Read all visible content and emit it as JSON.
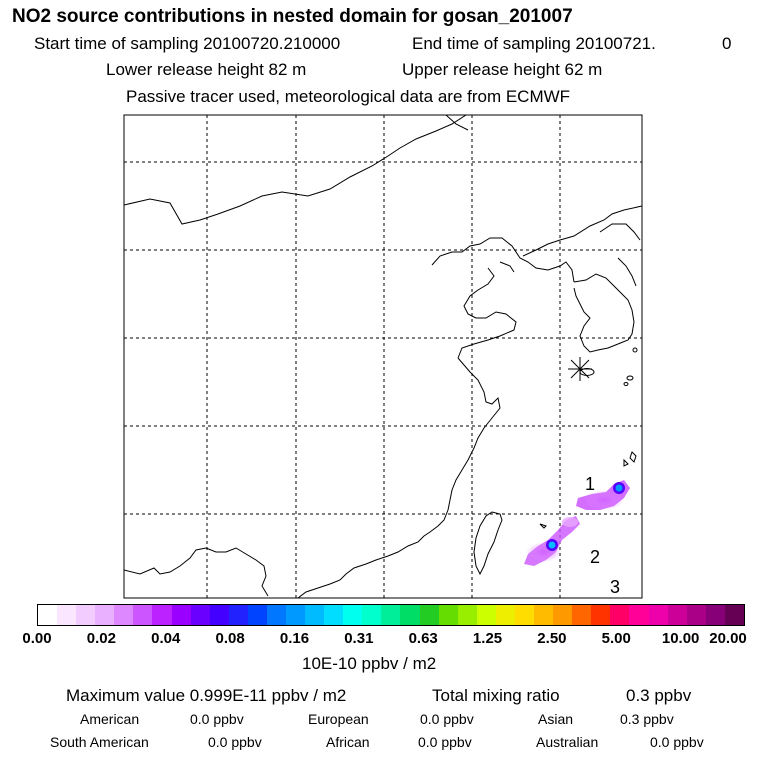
{
  "title": "NO2 source contributions in nested domain for gosan_201007",
  "sampling": {
    "start": "Start time of sampling 20100720.210000",
    "end": "End time of sampling 20100721.",
    "end_suffix": "0"
  },
  "release": {
    "lower": "Lower release height   82 m",
    "upper": "Upper release height   62 m"
  },
  "note": "Passive tracer used, meteorological data are from ECMWF",
  "map": {
    "labels": [
      "1",
      "2",
      "3"
    ],
    "colors": {
      "coast": "#000000",
      "grid": "#000000",
      "plume": "#cc33ff",
      "hotspot": "#2277ff"
    }
  },
  "colorbar": {
    "ticks": [
      "0.00",
      "0.02",
      "0.04",
      "0.08",
      "0.16",
      "0.31",
      "0.63",
      "1.25",
      "2.50",
      "5.00",
      "10.00",
      "20.00"
    ],
    "colors": [
      "#ffffff",
      "#fbe6ff",
      "#f3ccff",
      "#e8b0ff",
      "#dd88ff",
      "#cc55ff",
      "#bb22ff",
      "#9900ff",
      "#6a00ff",
      "#4400ff",
      "#2222ff",
      "#0044ff",
      "#0077ff",
      "#0099ff",
      "#00bbff",
      "#00ddff",
      "#00ffee",
      "#00ffcc",
      "#00ee99",
      "#00dd66",
      "#22cc22",
      "#66dd00",
      "#99ee00",
      "#ccff00",
      "#eeee00",
      "#ffdd00",
      "#ffbb00",
      "#ff9900",
      "#ff6600",
      "#ff3300",
      "#ff0066",
      "#ff0099",
      "#ee00aa",
      "#cc0099",
      "#aa0088",
      "#880077",
      "#660055"
    ],
    "unit": "10E-10 ppbv / m2"
  },
  "summary": {
    "max_value": "Maximum value  0.999E-11 ppbv / m2",
    "total": "Total mixing ratio",
    "total_value": "0.3 ppbv"
  },
  "regions": [
    {
      "name": "American",
      "value": "0.0 ppbv"
    },
    {
      "name": "European",
      "value": "0.0 ppbv"
    },
    {
      "name": "Asian",
      "value": "0.3 ppbv"
    },
    {
      "name": "South American",
      "value": "0.0 ppbv"
    },
    {
      "name": "African",
      "value": "0.0 ppbv"
    },
    {
      "name": "Australian",
      "value": "0.0 ppbv"
    }
  ]
}
